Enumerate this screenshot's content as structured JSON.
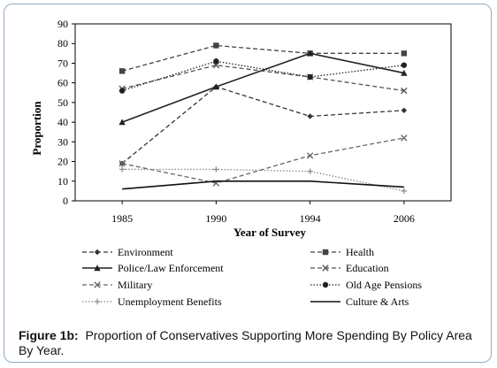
{
  "figure": {
    "caption_label": "Figure 1b:",
    "caption_text": "Proportion of Conservatives Supporting More Spending By Policy Area By Year."
  },
  "chart_data": {
    "type": "line",
    "title": "",
    "xlabel": "Year of Survey",
    "ylabel": "Proportion",
    "ylim": [
      0,
      90
    ],
    "yticks": [
      0,
      10,
      20,
      30,
      40,
      50,
      60,
      70,
      80,
      90
    ],
    "categories": [
      "1985",
      "1990",
      "1994",
      "2006"
    ],
    "grid": false,
    "legend_position": "bottom",
    "series": [
      {
        "name": "Environment",
        "values": [
          19,
          58,
          43,
          46
        ],
        "marker": "diamond",
        "dash": "dashed",
        "color": "#333333"
      },
      {
        "name": "Health",
        "values": [
          66,
          79,
          75,
          75
        ],
        "marker": "square",
        "dash": "dashed",
        "color": "#444444"
      },
      {
        "name": "Police/Law Enforcement",
        "values": [
          40,
          58,
          75,
          65
        ],
        "marker": "triangle",
        "dash": "solid",
        "color": "#222222"
      },
      {
        "name": "Education",
        "values": [
          57,
          69,
          63,
          56
        ],
        "marker": "x",
        "dash": "dashed",
        "color": "#555555"
      },
      {
        "name": "Military",
        "values": [
          19,
          9,
          23,
          32
        ],
        "marker": "x",
        "dash": "dashed",
        "color": "#666666"
      },
      {
        "name": "Old Age Pensions",
        "values": [
          56,
          71,
          63,
          69
        ],
        "marker": "circle",
        "dash": "dotted",
        "color": "#222222"
      },
      {
        "name": "Unemployment Benefits",
        "values": [
          16,
          16,
          15,
          5
        ],
        "marker": "plus",
        "dash": "dotted",
        "color": "#888888"
      },
      {
        "name": "Culture & Arts",
        "values": [
          6,
          10,
          10,
          7
        ],
        "marker": "none",
        "dash": "solid",
        "color": "#111111"
      }
    ]
  }
}
